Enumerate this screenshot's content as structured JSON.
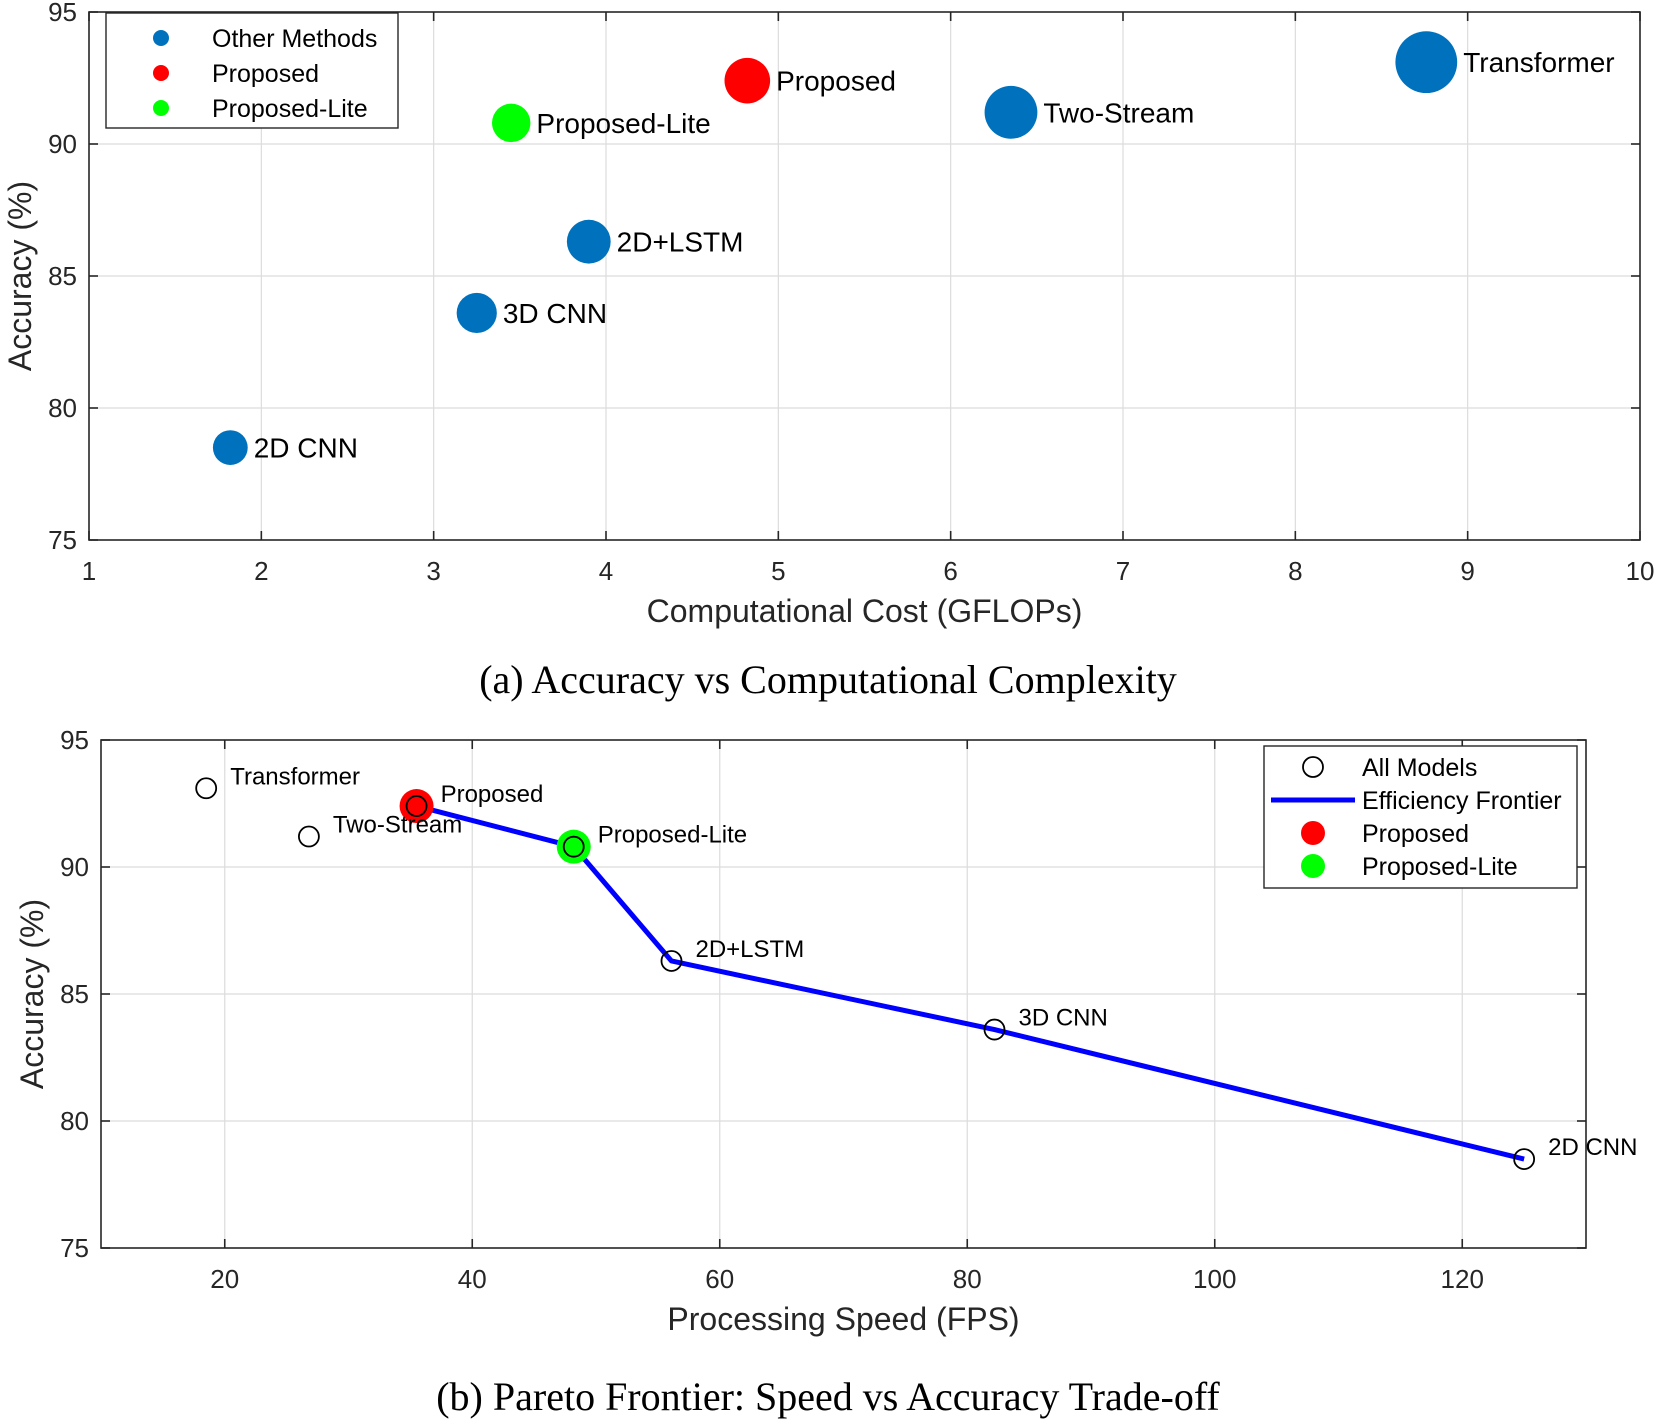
{
  "chart_data": [
    {
      "type": "scatter",
      "panel": "a",
      "caption": "(a) Accuracy vs Computational Complexity",
      "xlabel": "Computational Cost (GFLOPs)",
      "ylabel": "Accuracy (%)",
      "xlim": [
        1,
        10
      ],
      "ylim": [
        75,
        95
      ],
      "xticks": [
        "1",
        "2",
        "3",
        "4",
        "5",
        "6",
        "7",
        "8",
        "9",
        "10"
      ],
      "yticks": [
        "75",
        "80",
        "85",
        "90",
        "95"
      ],
      "grid": true,
      "legend_position": "top-left",
      "legend": [
        {
          "label": "Other Methods",
          "color": "#0072BD"
        },
        {
          "label": "Proposed",
          "color": "#FF0000"
        },
        {
          "label": "Proposed-Lite",
          "color": "#00FF00"
        }
      ],
      "points": [
        {
          "label": "2D CNN",
          "x": 1.82,
          "y": 78.5,
          "group": "Other Methods",
          "color": "#0072BD",
          "relsize": 0.8
        },
        {
          "label": "3D CNN",
          "x": 3.25,
          "y": 83.6,
          "group": "Other Methods",
          "color": "#0072BD",
          "relsize": 0.95
        },
        {
          "label": "2D+LSTM",
          "x": 3.9,
          "y": 86.3,
          "group": "Other Methods",
          "color": "#0072BD",
          "relsize": 1.05
        },
        {
          "label": "Proposed-Lite",
          "x": 3.45,
          "y": 90.8,
          "group": "Proposed-Lite",
          "color": "#00FF00",
          "relsize": 0.9
        },
        {
          "label": "Proposed",
          "x": 4.82,
          "y": 92.4,
          "group": "Proposed",
          "color": "#FF0000",
          "relsize": 1.1
        },
        {
          "label": "Two-Stream",
          "x": 6.35,
          "y": 91.2,
          "group": "Other Methods",
          "color": "#0072BD",
          "relsize": 1.3
        },
        {
          "label": "Transformer",
          "x": 8.76,
          "y": 93.1,
          "group": "Other Methods",
          "color": "#0072BD",
          "relsize": 1.55
        }
      ]
    },
    {
      "type": "scatter",
      "panel": "b",
      "caption": "(b) Pareto Frontier: Speed vs Accuracy Trade-off",
      "xlabel": "Processing Speed (FPS)",
      "ylabel": "Accuracy (%)",
      "xlim": [
        10,
        130
      ],
      "ylim": [
        75,
        95
      ],
      "xticks": [
        "20",
        "40",
        "60",
        "80",
        "100",
        "120"
      ],
      "yticks": [
        "75",
        "80",
        "85",
        "90",
        "95"
      ],
      "grid": true,
      "legend_position": "top-right",
      "legend": [
        {
          "label": "All Models",
          "kind": "open-circle",
          "color": "#000000"
        },
        {
          "label": "Efficiency Frontier",
          "kind": "line",
          "color": "#0000FF"
        },
        {
          "label": "Proposed",
          "kind": "filled-circle",
          "color": "#FF0000"
        },
        {
          "label": "Proposed-Lite",
          "kind": "filled-circle",
          "color": "#00FF00"
        }
      ],
      "points": [
        {
          "label": "Transformer",
          "x": 18.5,
          "y": 93.1
        },
        {
          "label": "Two-Stream",
          "x": 26.8,
          "y": 91.2
        },
        {
          "label": "Proposed",
          "x": 35.5,
          "y": 92.4
        },
        {
          "label": "Proposed-Lite",
          "x": 48.2,
          "y": 90.8
        },
        {
          "label": "2D+LSTM",
          "x": 56.1,
          "y": 86.3
        },
        {
          "label": "3D CNN",
          "x": 82.2,
          "y": 83.6
        },
        {
          "label": "2D CNN",
          "x": 125.0,
          "y": 78.5
        }
      ],
      "highlights": [
        {
          "label": "Proposed",
          "x": 35.5,
          "y": 92.4,
          "color": "#FF0000"
        },
        {
          "label": "Proposed-Lite",
          "x": 48.2,
          "y": 90.8,
          "color": "#00FF00"
        }
      ],
      "frontier": {
        "color": "#0000FF",
        "x": [
          35.5,
          48.2,
          56.1,
          82.2,
          125.0
        ],
        "y": [
          92.4,
          90.8,
          86.3,
          83.6,
          78.5
        ]
      }
    }
  ]
}
